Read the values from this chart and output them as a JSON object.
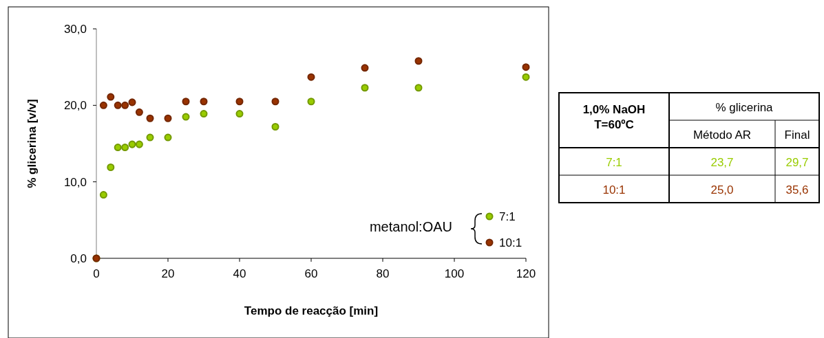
{
  "chart_data": [
    {
      "type": "scatter",
      "xlabel": "Tempo de reacção [min]",
      "ylabel": "% glicerina [v/v]",
      "legend_title": "metanol:OAU",
      "legend": "bottom right",
      "marker": "circle",
      "grid": false,
      "xlim": [
        0,
        120
      ],
      "xticks": [
        0,
        20,
        40,
        60,
        80,
        100,
        120
      ],
      "ylim": [
        0,
        30
      ],
      "yticks": [
        {
          "value": 0,
          "label": "0,0"
        },
        {
          "value": 10,
          "label": "10,0"
        },
        {
          "value": 20,
          "label": "20,0"
        },
        {
          "value": 30,
          "label": "30,0"
        }
      ],
      "series": [
        {
          "name": "7:1",
          "color": "#99cc00",
          "x": [
            0,
            2,
            4,
            6,
            8,
            10,
            12,
            15,
            20,
            25,
            30,
            40,
            50,
            60,
            75,
            90,
            120
          ],
          "values": [
            0,
            8.3,
            11.9,
            14.5,
            14.5,
            14.9,
            14.9,
            15.8,
            15.8,
            18.5,
            18.9,
            18.9,
            17.2,
            20.5,
            22.3,
            22.3,
            23.7
          ]
        },
        {
          "name": "10:1",
          "color": "#993300",
          "x": [
            0,
            2,
            4,
            6,
            8,
            10,
            12,
            15,
            20,
            25,
            30,
            40,
            50,
            60,
            75,
            90,
            120
          ],
          "values": [
            0,
            20.0,
            21.1,
            20.0,
            20.0,
            20.4,
            19.1,
            18.3,
            18.3,
            20.5,
            20.5,
            20.5,
            20.5,
            23.7,
            24.9,
            25.8,
            25.0
          ]
        }
      ]
    },
    {
      "type": "other",
      "title": "% glicerina",
      "annotations": [
        "1,0% NaOH",
        "T=60ºC"
      ],
      "categories": [
        "Método AR",
        "Final"
      ],
      "series": [
        {
          "name": "7:1",
          "color": "#99cc00",
          "values": [
            23.7,
            29.7
          ],
          "value_labels": [
            "23,7",
            "29,7"
          ]
        },
        {
          "name": "10:1",
          "color": "#993300",
          "values": [
            25.0,
            35.6
          ],
          "value_labels": [
            "25,0",
            "35,6"
          ]
        }
      ]
    }
  ]
}
